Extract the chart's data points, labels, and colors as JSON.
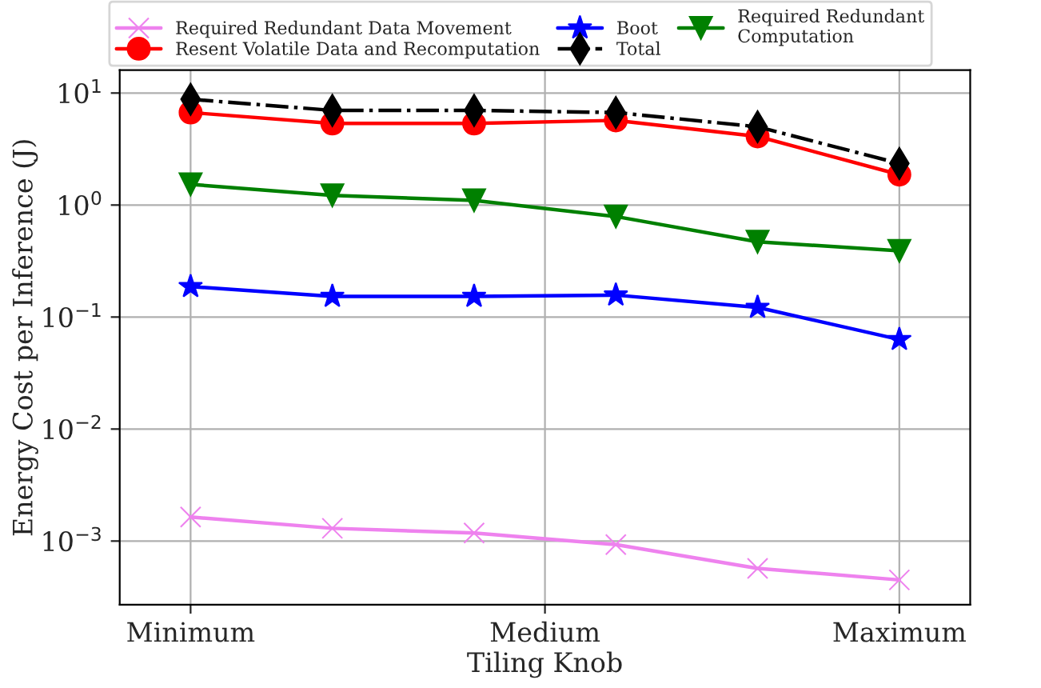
{
  "chart_data": {
    "type": "line",
    "xlabel": "Tiling Knob",
    "ylabel": "Energy Cost per Inference (J)",
    "categories": [
      "Minimum",
      null,
      null,
      null,
      null,
      "Maximum"
    ],
    "annotations": [
      "Medium"
    ],
    "log": true,
    "ylim": [
      0.00027,
      16
    ],
    "yticks": [
      {
        "value": 0.001,
        "label": "10$^{−3}$"
      },
      {
        "value": 0.01,
        "label": "10$^{−2}$"
      },
      {
        "value": 0.1,
        "label": "10$^{−1}$"
      },
      {
        "value": 1,
        "label": "10$^{0}$"
      },
      {
        "value": 10,
        "label": "10$^{1}$"
      }
    ],
    "grid": true,
    "legend": "top",
    "series": [
      {
        "name": "Required Redundant Data Movement",
        "color": "#ee82ee",
        "marker": "cross",
        "line_style": "solid",
        "values": [
          0.00164,
          0.0013,
          0.00118,
          0.00093,
          0.00057,
          0.00045
        ]
      },
      {
        "name": "Resent Volatile Data and Recomputation",
        "color": "#ff0000",
        "marker": "circle",
        "line_style": "solid",
        "values": [
          6.7,
          5.35,
          5.35,
          5.7,
          4.1,
          1.87
        ]
      },
      {
        "name": "Boot",
        "color": "#0000ff",
        "marker": "star",
        "line_style": "solid",
        "values": [
          0.187,
          0.153,
          0.153,
          0.157,
          0.122,
          0.063
        ]
      },
      {
        "name": "Total",
        "color": "#000000",
        "marker": "diamond",
        "line_style": "dashdot",
        "values": [
          8.8,
          7.0,
          7.0,
          6.7,
          5.0,
          2.35
        ]
      },
      {
        "name": "Required Redundant\nComputation",
        "color": "#008000",
        "marker": "triangle",
        "line_style": "solid",
        "values": [
          1.53,
          1.22,
          1.1,
          0.79,
          0.47,
          0.39
        ]
      }
    ]
  }
}
